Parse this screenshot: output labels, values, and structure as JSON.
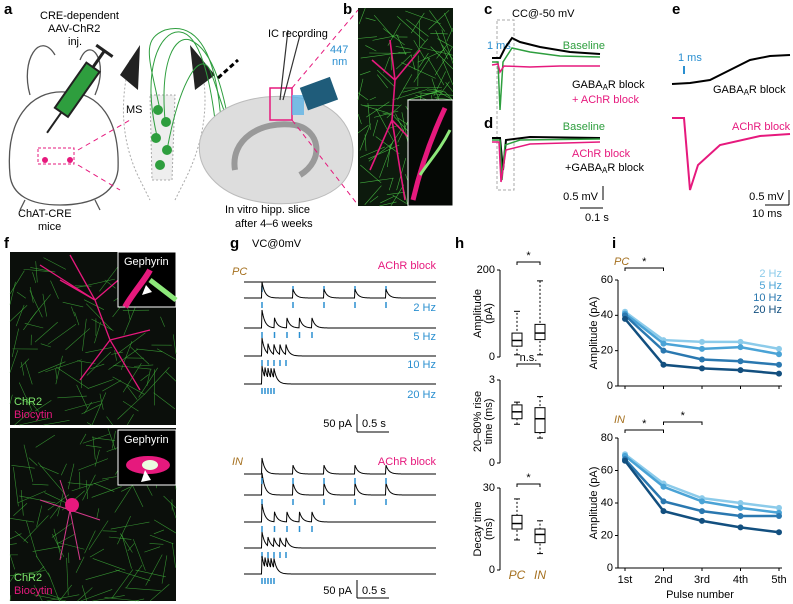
{
  "panel_labels": [
    "a",
    "b",
    "c",
    "d",
    "e",
    "f",
    "g",
    "h",
    "i"
  ],
  "a": {
    "injection": [
      "CRE-dependent",
      "AAV-ChR2",
      "inj."
    ],
    "mouse": [
      "ChAT-CRE",
      "mice"
    ],
    "septum": "MS",
    "recording": "IC recording",
    "light": [
      "447",
      "nm"
    ],
    "slice": [
      "In vitro hipp. slice",
      "after 4–6 weeks"
    ]
  },
  "c": {
    "mode": "CC@-50 mV",
    "time_marker": "1 ms",
    "baseline": "Baseline",
    "gaba_block": [
      "GABA",
      "A",
      "R block"
    ],
    "ach_block": "+ AChR block"
  },
  "d": {
    "baseline": "Baseline",
    "ach_block": "AChR block",
    "gaba_block": [
      "+GABA",
      "A",
      "R block"
    ],
    "scale_v": "0.5 mV",
    "scale_t": "0.1 s"
  },
  "e": {
    "time_marker": "1 ms",
    "gaba_block": [
      "GABA",
      "A",
      "R block"
    ],
    "ach_block": "AChR block",
    "scale_v": "0.5 mV",
    "scale_t": "10 ms"
  },
  "f": {
    "top": {
      "inset": "Gephyrin",
      "stain1": "ChR2",
      "stain2": "Biocytin"
    },
    "bottom": {
      "inset": "Gephyrin",
      "stain1": "ChR2",
      "stain2": "Biocytin"
    }
  },
  "g": {
    "mode": "VC@0mV",
    "pc": {
      "label": "PC",
      "block": "AChR block",
      "freqs": [
        "2 Hz",
        "5 Hz",
        "10 Hz",
        "20 Hz"
      ],
      "scale_i": "50 pA",
      "scale_t": "0.5 s"
    },
    "in": {
      "label": "IN",
      "block": "AChR block",
      "scale_i": "50 pA",
      "scale_t": "0.5 s"
    }
  },
  "chart_data": [
    {
      "type": "box",
      "ylabel": [
        "Amplitude",
        "(pA)"
      ],
      "categories": [
        null,
        null
      ],
      "ylim": [
        0,
        200
      ],
      "yticks": [
        0,
        200
      ],
      "boxes": [
        {
          "whislo": 5,
          "q1": 25,
          "med": 38,
          "q3": 55,
          "whishi": 105
        },
        {
          "whislo": 5,
          "q1": 40,
          "med": 55,
          "q3": 75,
          "whishi": 175
        }
      ],
      "annotations": [
        "*"
      ]
    },
    {
      "type": "box",
      "ylabel": [
        "20–80% rise",
        "time (ms)"
      ],
      "categories": [
        null,
        null
      ],
      "ylim": [
        0,
        3
      ],
      "yticks": [
        0,
        3
      ],
      "boxes": [
        {
          "whislo": 1.4,
          "q1": 1.6,
          "med": 1.85,
          "q3": 2.1,
          "whishi": 2.2
        },
        {
          "whislo": 0.9,
          "q1": 1.1,
          "med": 1.6,
          "q3": 2.0,
          "whishi": 2.4
        }
      ],
      "annotations": [
        "n.s."
      ]
    },
    {
      "type": "box",
      "ylabel": [
        "Decay time",
        "(ms)"
      ],
      "categories": [
        "PC",
        "IN"
      ],
      "ylim": [
        0,
        30
      ],
      "yticks": [
        0,
        30
      ],
      "boxes": [
        {
          "whislo": 11,
          "q1": 15,
          "med": 17,
          "q3": 20,
          "whishi": 26
        },
        {
          "whislo": 6,
          "q1": 10,
          "med": 13,
          "q3": 15,
          "whishi": 18
        }
      ],
      "annotations": [
        "*"
      ]
    },
    {
      "type": "line",
      "label": "PC",
      "ylabel": "Amplitude (pA)",
      "categories": [
        null,
        null,
        null,
        null,
        null
      ],
      "ylim": [
        0,
        60
      ],
      "yticks": [
        0,
        20,
        40,
        60
      ],
      "series": [
        {
          "name": "2 Hz",
          "color": "#8ccbea",
          "values": [
            42,
            26,
            25,
            25,
            21
          ]
        },
        {
          "name": "5 Hz",
          "color": "#4aa3d6",
          "values": [
            41,
            24,
            21,
            22,
            18
          ]
        },
        {
          "name": "10 Hz",
          "color": "#2a78b0",
          "values": [
            40,
            20,
            15,
            14,
            12
          ]
        },
        {
          "name": "20 Hz",
          "color": "#124f7f",
          "values": [
            38,
            12,
            10,
            9,
            7
          ]
        }
      ],
      "annotations": [
        "*"
      ]
    },
    {
      "type": "line",
      "label": "IN",
      "ylabel": "Amplitude (pA)",
      "xlabel": "Pulse number",
      "categories": [
        "1st",
        "2nd",
        "3rd",
        "4th",
        "5th"
      ],
      "ylim": [
        0,
        80
      ],
      "yticks": [
        0,
        20,
        40,
        60,
        80
      ],
      "series": [
        {
          "color": "#8ccbea",
          "values": [
            70,
            52,
            43,
            40,
            37
          ]
        },
        {
          "color": "#4aa3d6",
          "values": [
            69,
            50,
            41,
            37,
            34
          ]
        },
        {
          "color": "#2a78b0",
          "values": [
            67,
            41,
            35,
            32,
            32
          ]
        },
        {
          "color": "#124f7f",
          "values": [
            66,
            35,
            29,
            25,
            22
          ]
        }
      ],
      "annotations": [
        "*",
        "*"
      ]
    }
  ]
}
